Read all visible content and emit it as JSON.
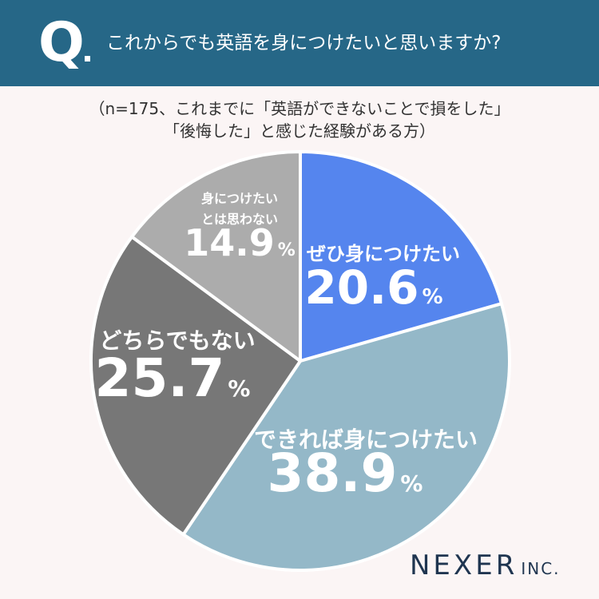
{
  "header": {
    "q_mark": "Q",
    "question": "これからでも英語を身につけたいと思いますか?"
  },
  "note": {
    "line1": "（n=175、これまでに「英語ができないことで損をした」",
    "line2": "「後悔した」と感じた経験がある方）"
  },
  "chart_data": {
    "type": "pie",
    "start_angle_deg": 0,
    "direction": "clockwise",
    "unit": "%",
    "slices": [
      {
        "label": "ぜひ身につけたい",
        "value": 20.6,
        "display": "20.6",
        "color": "#5585ee"
      },
      {
        "label": "できれば身につけたい",
        "value": 38.9,
        "display": "38.9",
        "color": "#94b8c8"
      },
      {
        "label": "どちらでもない",
        "value": 25.7,
        "display": "25.7",
        "color": "#777777"
      },
      {
        "label": "身につけたい\nとは思わない",
        "value": 14.9,
        "display": "14.9",
        "color": "#acacac"
      }
    ]
  },
  "logo": {
    "name": "NEXER",
    "suffix": "INC."
  }
}
